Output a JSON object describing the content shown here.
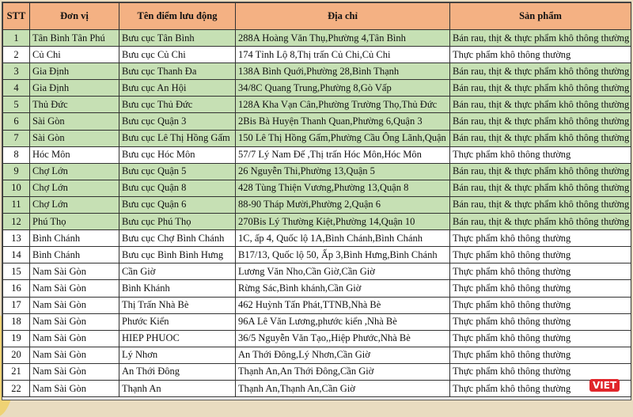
{
  "colors": {
    "header": "#f4b183",
    "highlight_row": "#c6e0b4",
    "plain_row": "#ffffff"
  },
  "headers": [
    "STT",
    "Đơn vị",
    "Tên điểm lưu động",
    "Địa chỉ",
    "Sản phẩm"
  ],
  "rows": [
    {
      "stt": "1",
      "unit": "Tân Bình Tân Phú",
      "point": "Bưu cục Tân Bình",
      "address": "288A Hoàng Văn Thụ,Phường 4,Tân Bình",
      "product": "Bán rau, thịt & thực phẩm khô thông thường",
      "highlight": true
    },
    {
      "stt": "2",
      "unit": "Củ Chi",
      "point": "Bưu cục Củ Chi",
      "address": "174 Tỉnh Lộ 8,Thị trấn Củ Chi,Củ Chi",
      "product": "Thực phẩm khô thông thường",
      "highlight": false
    },
    {
      "stt": "3",
      "unit": "Gia Định",
      "point": "Bưu cục Thanh Đa",
      "address": "138A Bình Quới,Phường 28,Bình Thạnh",
      "product": "Bán rau, thịt & thực phẩm khô thông thường",
      "highlight": true
    },
    {
      "stt": "4",
      "unit": "Gia Định",
      "point": "Bưu cục An Hội",
      "address": "34/8C Quang Trung,Phường 8,Gò Vấp",
      "product": "Bán rau, thịt & thực phẩm khô thông thường",
      "highlight": true
    },
    {
      "stt": "5",
      "unit": "Thủ Đức",
      "point": "Bưu cục Thủ Đức",
      "address": "128A Kha Vạn Cân,Phường Trường Thọ,Thủ Đức",
      "product": "Bán rau, thịt & thực phẩm khô thông thường",
      "highlight": true
    },
    {
      "stt": "6",
      "unit": "Sài Gòn",
      "point": "Bưu cục Quận 3",
      "address": "2Bis Bà Huyện Thanh Quan,Phường 6,Quận 3",
      "product": "Bán rau, thịt & thực phẩm khô thông thường",
      "highlight": true
    },
    {
      "stt": "7",
      "unit": "Sài Gòn",
      "point": "Bưu cục Lê Thị Hồng Gấm",
      "address": "150 Lê Thị Hồng Gấm,Phường Cầu Ông Lãnh,Quận 1",
      "product": "Bán rau, thịt & thực phẩm khô thông thường",
      "highlight": true
    },
    {
      "stt": "8",
      "unit": "Hóc Môn",
      "point": "Bưu cục Hóc Môn",
      "address": "57/7 Lý Nam Đế ,Thị trấn Hóc Môn,Hóc Môn",
      "product": "Thực phẩm khô thông thường",
      "highlight": false
    },
    {
      "stt": "9",
      "unit": "Chợ Lớn",
      "point": "Bưu cục Quận 5",
      "address": "26 Nguyễn Thi,Phường 13,Quận 5",
      "product": "Bán rau, thịt & thực phẩm khô thông thường",
      "highlight": true
    },
    {
      "stt": "10",
      "unit": "Chợ Lớn",
      "point": "Bưu cục Quận 8",
      "address": "428 Tùng Thiện Vương,Phường 13,Quận 8",
      "product": "Bán rau, thịt & thực phẩm khô thông thường",
      "highlight": true
    },
    {
      "stt": "11",
      "unit": "Chợ Lớn",
      "point": "Bưu cục Quận 6",
      "address": "88-90 Tháp Mười,Phường 2,Quận 6",
      "product": "Bán rau, thịt & thực phẩm khô thông thường",
      "highlight": true
    },
    {
      "stt": "12",
      "unit": "Phú Thọ",
      "point": "Bưu cục Phú Thọ",
      "address": "270Bis Lý Thường Kiệt,Phường 14,Quận 10",
      "product": "Bán rau, thịt & thực phẩm khô thông thường",
      "highlight": true
    },
    {
      "stt": "13",
      "unit": "Bình Chánh",
      "point": "Bưu cục Chợ Bình Chánh",
      "address": "1C, ấp 4, Quốc lộ 1A,Bình Chánh,Bình Chánh",
      "product": "Thực phẩm khô thông thường",
      "highlight": false
    },
    {
      "stt": "14",
      "unit": "Bình Chánh",
      "point": "Bưu cục Bình Bình Hưng",
      "address": "B17/13, Quốc lộ 50, Ấp 3,Bình Hưng,Bình Chánh",
      "product": "Thực phẩm khô thông thường",
      "highlight": false
    },
    {
      "stt": "15",
      "unit": "Nam Sài Gòn",
      "point": "Cần Giờ",
      "address": "Lương Văn Nho,Cần Giờ,Cần Giờ",
      "product": "Thực phẩm khô thông thường",
      "highlight": false
    },
    {
      "stt": "16",
      "unit": "Nam Sài Gòn",
      "point": "Bình Khánh",
      "address": "Rừng Sác,Bình khánh,Cần Giờ",
      "product": "Thực phẩm khô thông thường",
      "highlight": false
    },
    {
      "stt": "17",
      "unit": "Nam Sài Gòn",
      "point": "Thị Trấn Nhà Bè",
      "address": "462 Huỳnh Tấn Phát,TTNB,Nhà Bè",
      "product": "Thực phẩm khô thông thường",
      "highlight": false
    },
    {
      "stt": "18",
      "unit": "Nam Sài Gòn",
      "point": "Phước Kiển",
      "address": "96A Lê Văn Lương,phước kiển ,Nhà Bè",
      "product": "Thực phẩm khô thông thường",
      "highlight": false
    },
    {
      "stt": "19",
      "unit": "Nam Sài Gòn",
      "point": "HIEP PHUOC",
      "address": "36/5 Nguyễn Văn Tạo,,Hiệp Phước,Nhà Bè",
      "product": "Thực phẩm khô thông thường",
      "highlight": false
    },
    {
      "stt": "20",
      "unit": "Nam Sài Gòn",
      "point": "Lý Nhơn",
      "address": "An Thới Đông,Lý Nhơn,Cần Giờ",
      "product": "Thực phẩm khô thông thường",
      "highlight": false
    },
    {
      "stt": "21",
      "unit": "Nam Sài Gòn",
      "point": "An Thới Đông",
      "address": "Thạnh An,An Thới Đông,Cần Giờ",
      "product": "Thực phẩm khô thông thường",
      "highlight": false
    },
    {
      "stt": "22",
      "unit": "Nam Sài Gòn",
      "point": "Thạnh An",
      "address": "Thạnh An,Thạnh An,Cần Giờ",
      "product": "Thực phẩm khô thông thường",
      "highlight": false
    }
  ],
  "watermark": {
    "text": "VIET"
  }
}
